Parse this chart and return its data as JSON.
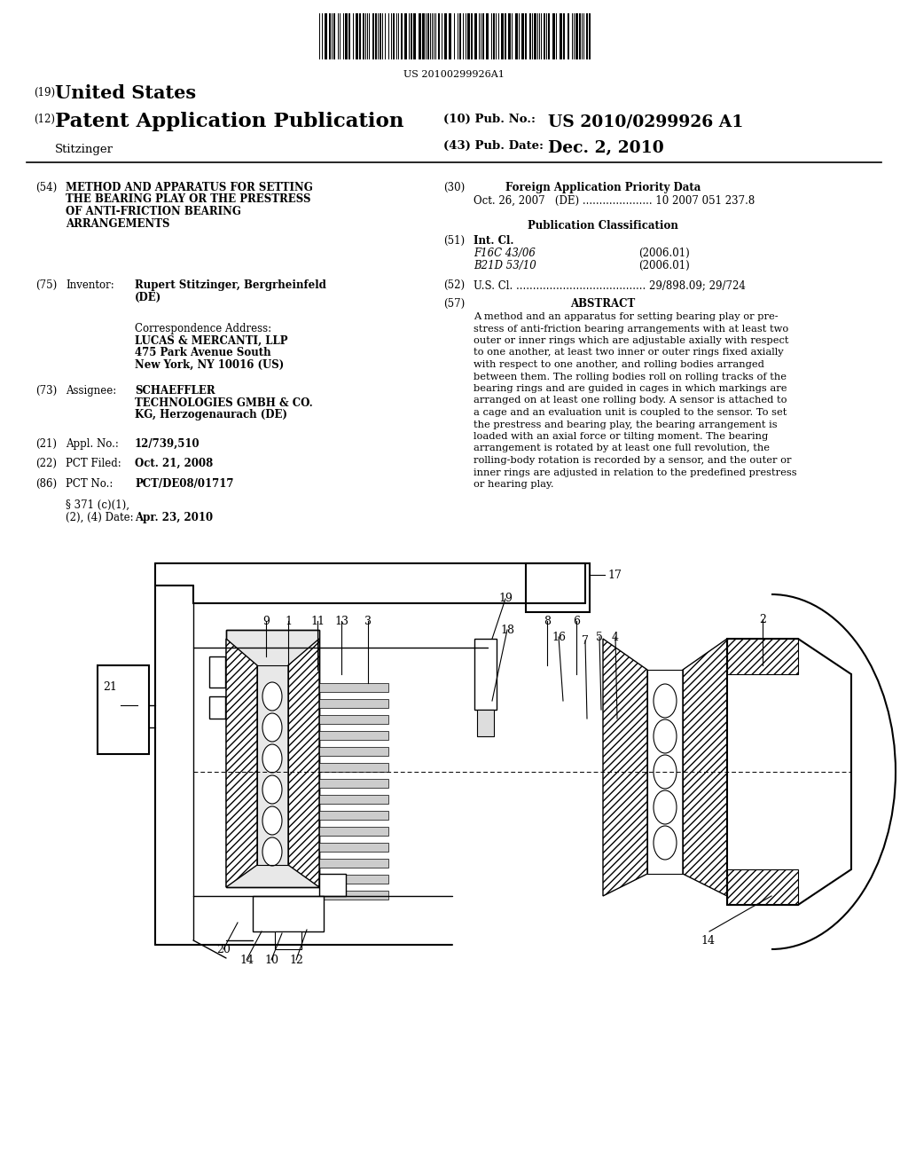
{
  "bg_color": "#ffffff",
  "barcode_text": "US 20100299926A1",
  "header_19": "(19)",
  "header_19_text": "United States",
  "header_12": "(12)",
  "header_12_text": "Patent Application Publication",
  "header_right_10": "(10) Pub. No.:",
  "header_right_10_val": "US 2010/0299926 A1",
  "header_right_43": "(43) Pub. Date:",
  "header_right_43_val": "Dec. 2, 2010",
  "header_inventor": "Stitzinger",
  "s54_num": "(54)",
  "s54_title_lines": [
    "METHOD AND APPARATUS FOR SETTING",
    "THE BEARING PLAY OR THE PRESTRESS",
    "OF ANTI-FRICTION BEARING",
    "ARRANGEMENTS"
  ],
  "s75_num": "(75)",
  "s75_label": "Inventor:",
  "s75_val1": "Rupert Stitzinger, Bergrheinfeld",
  "s75_val2": "(DE)",
  "corr_label": "Correspondence Address:",
  "corr_line1": "LUCAS & MERCANTI, LLP",
  "corr_line2": "475 Park Avenue South",
  "corr_line3": "New York, NY 10016 (US)",
  "s73_num": "(73)",
  "s73_label": "Assignee:",
  "s73_val1": "SCHAEFFLER",
  "s73_val2": "TECHNOLOGIES GMBH & CO.",
  "s73_val3": "KG, Herzogenaurach (DE)",
  "s21_num": "(21)",
  "s21_label": "Appl. No.:",
  "s21_val": "12/739,510",
  "s22_num": "(22)",
  "s22_label": "PCT Filed:",
  "s22_val": "Oct. 21, 2008",
  "s86_num": "(86)",
  "s86_label": "PCT No.:",
  "s86_val": "PCT/DE08/01717",
  "s371_label1": "§ 371 (c)(1),",
  "s371_label2": "(2), (4) Date:",
  "s371_val": "Apr. 23, 2010",
  "s30_num": "(30)",
  "s30_title": "Foreign Application Priority Data",
  "s30_data": "Oct. 26, 2007   (DE) ..................... 10 2007 051 237.8",
  "pub_class": "Publication Classification",
  "s51_num": "(51)",
  "s51_label": "Int. Cl.",
  "s51_line1": "F16C 43/06",
  "s51_date1": "(2006.01)",
  "s51_line2": "B21D 53/10",
  "s51_date2": "(2006.01)",
  "s52_num": "(52)",
  "s52_text": "U.S. Cl. ....................................... 29/898.09; 29/724",
  "s57_num": "(57)",
  "s57_title": "ABSTRACT",
  "abstract_lines": [
    "A method and an apparatus for setting bearing play or pre-",
    "stress of anti-friction bearing arrangements with at least two",
    "outer or inner rings which are adjustable axially with respect",
    "to one another, at least two inner or outer rings fixed axially",
    "with respect to one another, and rolling bodies arranged",
    "between them. The rolling bodies roll on rolling tracks of the",
    "bearing rings and are guided in cages in which markings are",
    "arranged on at least one rolling body. A sensor is attached to",
    "a cage and an evaluation unit is coupled to the sensor. To set",
    "the prestress and bearing play, the bearing arrangement is",
    "loaded with an axial force or tilting moment. The bearing",
    "arrangement is rotated by at least one full revolution, the",
    "rolling-body rotation is recorded by a sensor, and the outer or",
    "inner rings are adjusted in relation to the predefined prestress",
    "or hearing play."
  ]
}
